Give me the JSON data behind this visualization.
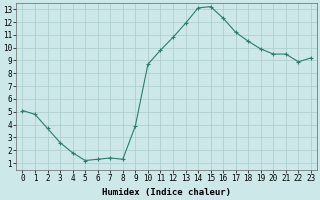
{
  "x": [
    0,
    1,
    2,
    3,
    4,
    5,
    6,
    7,
    8,
    9,
    10,
    11,
    12,
    13,
    14,
    15,
    16,
    17,
    18,
    19,
    20,
    21,
    22,
    23
  ],
  "y": [
    5.1,
    4.8,
    3.7,
    2.6,
    1.8,
    1.2,
    1.3,
    1.4,
    1.3,
    3.9,
    8.7,
    9.8,
    10.8,
    11.9,
    13.1,
    13.2,
    12.3,
    11.2,
    10.5,
    9.9,
    9.5,
    9.5,
    8.9,
    9.2
  ],
  "line_color": "#2d7d6e",
  "marker": "+",
  "marker_size": 3,
  "marker_linewidth": 0.8,
  "bg_color": "#cce8e8",
  "grid_color": "#aacccc",
  "xlabel": "Humidex (Indice chaleur)",
  "xlim": [
    -0.5,
    23.5
  ],
  "ylim": [
    0.5,
    13.5
  ],
  "yticks": [
    1,
    2,
    3,
    4,
    5,
    6,
    7,
    8,
    9,
    10,
    11,
    12,
    13
  ],
  "xticks": [
    0,
    1,
    2,
    3,
    4,
    5,
    6,
    7,
    8,
    9,
    10,
    11,
    12,
    13,
    14,
    15,
    16,
    17,
    18,
    19,
    20,
    21,
    22,
    23
  ],
  "tick_fontsize": 5.5,
  "xlabel_fontsize": 6.5,
  "line_width": 0.8
}
